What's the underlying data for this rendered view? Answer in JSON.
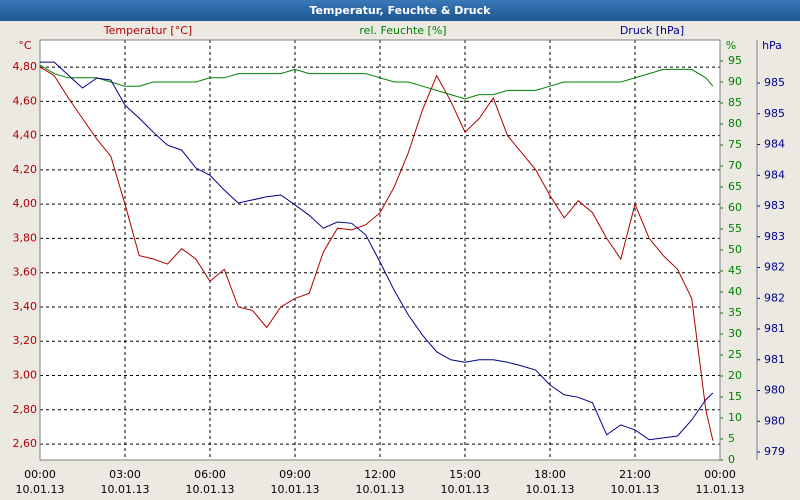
{
  "chart_data": {
    "type": "line",
    "title": "Temperatur, Feuchte & Druck",
    "y_unit": "°C",
    "y2_unit": "%",
    "y3_unit": "hPa",
    "x": [
      0,
      0.5,
      1,
      1.5,
      2,
      2.5,
      3,
      3.5,
      4,
      4.5,
      5,
      5.5,
      6,
      6.5,
      7,
      7.5,
      8,
      8.5,
      9,
      9.5,
      10,
      10.5,
      11,
      11.5,
      12,
      12.5,
      13,
      13.5,
      14,
      14.5,
      15,
      15.5,
      16,
      16.5,
      17,
      17.5,
      18,
      18.5,
      19,
      19.5,
      20,
      20.5,
      21,
      21.5,
      22,
      22.5,
      23,
      23.5,
      23.75
    ],
    "series": [
      {
        "name": "Temperatur [°C]",
        "color": "#b00000",
        "axis": "y",
        "values": [
          4.8,
          4.75,
          4.62,
          4.5,
          4.38,
          4.28,
          4.0,
          3.7,
          3.68,
          3.65,
          3.74,
          3.68,
          3.55,
          3.62,
          3.4,
          3.38,
          3.28,
          3.4,
          3.45,
          3.48,
          3.72,
          3.86,
          3.85,
          3.88,
          3.95,
          4.1,
          4.3,
          4.55,
          4.75,
          4.6,
          4.42,
          4.5,
          4.62,
          4.4,
          4.3,
          4.2,
          4.05,
          3.92,
          4.02,
          3.95,
          3.8,
          3.68,
          4.0,
          3.8,
          3.7,
          3.62,
          3.45,
          2.8,
          2.62
        ]
      },
      {
        "name": "rel. Feuchte [%]",
        "color": "#008000",
        "axis": "y2",
        "values": [
          94,
          92,
          91,
          91,
          91,
          90,
          89,
          89,
          90,
          90,
          90,
          90,
          91,
          91,
          92,
          92,
          92,
          92,
          93,
          92,
          92,
          92,
          92,
          92,
          91,
          90,
          90,
          89,
          88,
          87,
          86,
          87,
          87,
          88,
          88,
          88,
          89,
          90,
          90,
          90,
          90,
          90,
          91,
          92,
          93,
          93,
          93,
          91,
          89
        ]
      },
      {
        "name": "Druck [hPa]",
        "color": "#00008b",
        "axis": "y3",
        "values": [
          985.34,
          985.34,
          985.13,
          984.92,
          985.08,
          985.05,
          984.64,
          984.43,
          984.2,
          983.99,
          983.91,
          983.62,
          983.5,
          983.26,
          983.05,
          983.1,
          983.15,
          983.18,
          983.02,
          982.85,
          982.64,
          982.74,
          982.72,
          982.53,
          982.09,
          981.63,
          981.23,
          980.9,
          980.63,
          980.5,
          980.46,
          980.5,
          980.5,
          980.46,
          980.4,
          980.33,
          980.09,
          979.93,
          979.89,
          979.8,
          979.28,
          979.44,
          979.36,
          979.2,
          979.23,
          979.26,
          979.52,
          979.85,
          979.96
        ]
      }
    ],
    "xlim": [
      0,
      24
    ],
    "xticks": [
      {
        "value": 0,
        "label": "00:00",
        "date": "10.01.13"
      },
      {
        "value": 3,
        "label": "03:00",
        "date": "10.01.13"
      },
      {
        "value": 6,
        "label": "06:00",
        "date": "10.01.13"
      },
      {
        "value": 9,
        "label": "09:00",
        "date": "10.01.13"
      },
      {
        "value": 12,
        "label": "12:00",
        "date": "10.01.13"
      },
      {
        "value": 15,
        "label": "15:00",
        "date": "10.01.13"
      },
      {
        "value": 18,
        "label": "18:00",
        "date": "10.01.13"
      },
      {
        "value": 21,
        "label": "21:00",
        "date": "10.01.13"
      },
      {
        "value": 24,
        "label": "00:00",
        "date": "11.01.13"
      }
    ],
    "ylim": [
      2.507,
      4.958
    ],
    "yticks": [
      {
        "value": 2.6,
        "label": "2,60"
      },
      {
        "value": 2.8,
        "label": "2,80"
      },
      {
        "value": 3.0,
        "label": "3,00"
      },
      {
        "value": 3.2,
        "label": "3,20"
      },
      {
        "value": 3.4,
        "label": "3,40"
      },
      {
        "value": 3.6,
        "label": "3,60"
      },
      {
        "value": 3.8,
        "label": "3,80"
      },
      {
        "value": 4.0,
        "label": "4,00"
      },
      {
        "value": 4.2,
        "label": "4,20"
      },
      {
        "value": 4.4,
        "label": "4,40"
      },
      {
        "value": 4.6,
        "label": "4,60"
      },
      {
        "value": 4.8,
        "label": "4,80"
      }
    ],
    "y2lim": [
      0,
      100
    ],
    "y2ticks": [
      0,
      5,
      10,
      15,
      20,
      25,
      30,
      35,
      40,
      45,
      50,
      55,
      60,
      65,
      70,
      75,
      80,
      85,
      90,
      95
    ],
    "y3lim": [
      978.87,
      985.7
    ],
    "y3ticks": [
      {
        "value": 979,
        "label": "979"
      },
      {
        "value": 979.5,
        "label": "980"
      },
      {
        "value": 980,
        "label": "980"
      },
      {
        "value": 980.5,
        "label": "981"
      },
      {
        "value": 981,
        "label": "981"
      },
      {
        "value": 981.5,
        "label": "982"
      },
      {
        "value": 982,
        "label": "982"
      },
      {
        "value": 982.5,
        "label": "983"
      },
      {
        "value": 983,
        "label": "983"
      },
      {
        "value": 983.5,
        "label": "984"
      },
      {
        "value": 984,
        "label": "984"
      },
      {
        "value": 984.5,
        "label": "985"
      },
      {
        "value": 985,
        "label": "985"
      }
    ],
    "grid": true
  }
}
